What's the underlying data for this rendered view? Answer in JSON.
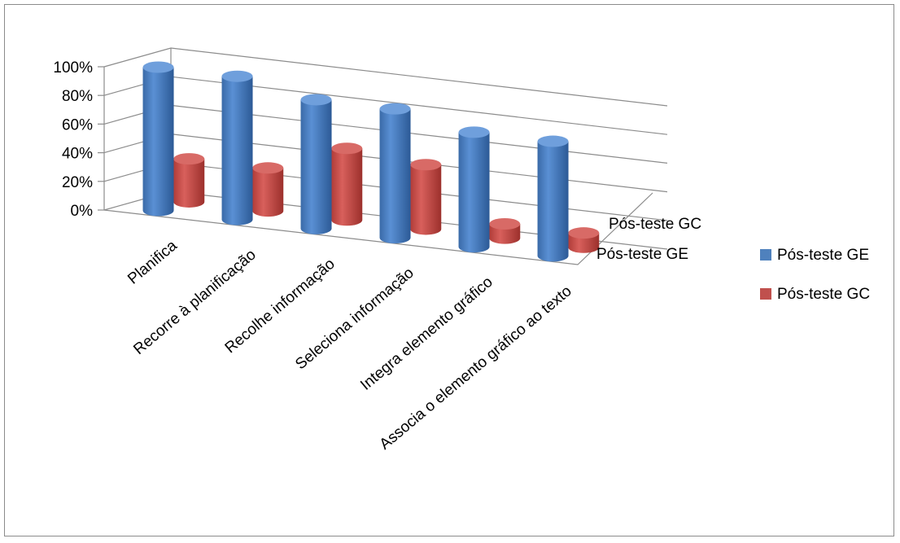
{
  "chart_data": {
    "type": "bar",
    "style": "3d-cylinder",
    "categories": [
      "Planifica",
      "Recorre à planificação",
      "Recolhe informação",
      "Seleciona informação",
      "Integra elemento gráfico",
      "Associa o elemento gráfico ao texto"
    ],
    "series": [
      {
        "name": "Pós-teste GE",
        "color": "#4f81bd",
        "values": [
          1.0,
          1.0,
          0.9,
          0.9,
          0.8,
          0.8
        ]
      },
      {
        "name": "Pós-teste GC",
        "color": "#c0504d",
        "values": [
          0.3,
          0.3,
          0.5,
          0.45,
          0.1,
          0.1
        ]
      }
    ],
    "y_ticks": [
      "0%",
      "20%",
      "40%",
      "60%",
      "80%",
      "100%"
    ],
    "ylim": [
      0,
      1
    ],
    "depth_labels": [
      "Pós-teste GC",
      "Pós-teste GE"
    ],
    "legend": {
      "position": "right",
      "entries": [
        "Pós-teste GE",
        "Pós-teste GC"
      ]
    },
    "gridlines": true
  }
}
